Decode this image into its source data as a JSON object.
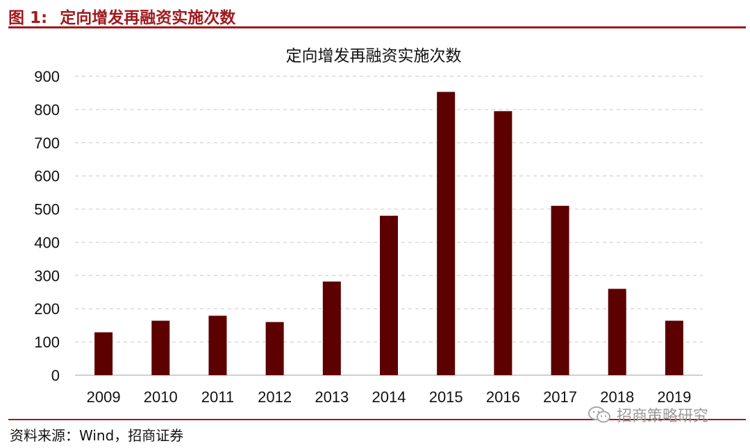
{
  "figure": {
    "label": "图 1:",
    "title": "定向增发再融资实施次数"
  },
  "source": "资料来源：Wind，招商证券",
  "watermark": {
    "text": "招商策略研究",
    "icon": "wechat-icon"
  },
  "colors": {
    "accent": "#a0191d",
    "bar": "#5c0000",
    "grid": "#d9d9d9"
  },
  "chart_data": {
    "type": "bar",
    "title": "定向增发再融资实施次数",
    "categories": [
      "2009",
      "2010",
      "2011",
      "2012",
      "2013",
      "2014",
      "2015",
      "2016",
      "2017",
      "2018",
      "2019"
    ],
    "values": [
      129,
      164,
      179,
      160,
      282,
      480,
      853,
      795,
      510,
      260,
      164
    ],
    "ylim": [
      0,
      900
    ],
    "yticks": [
      0,
      100,
      200,
      300,
      400,
      500,
      600,
      700,
      800,
      900
    ],
    "grid": true,
    "legend": false,
    "xlabel": "",
    "ylabel": ""
  }
}
